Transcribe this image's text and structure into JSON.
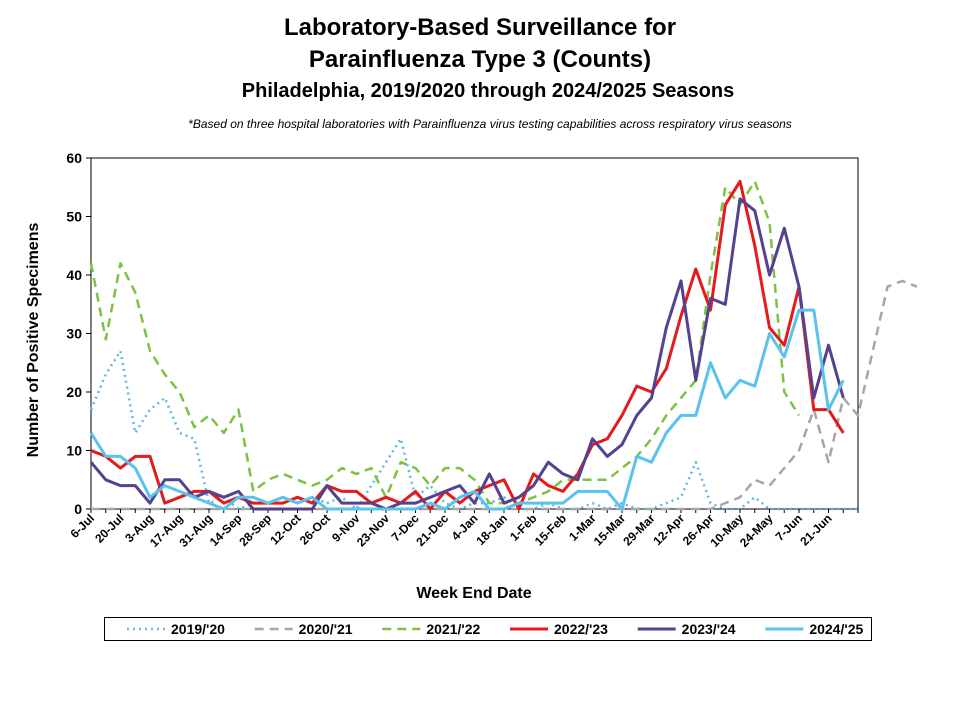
{
  "header": {
    "title_line1": "Laboratory-Based Surveillance for",
    "title_line2": "Parainfluenza Type 3 (Counts)",
    "subtitle": "Philadelphia, 2019/2020 through 2024/2025 Seasons",
    "note": "*Based on three hospital laboratories with Parainfluenza virus testing capabilities across respiratory virus seasons"
  },
  "chart_data": {
    "type": "line",
    "title": "Laboratory-Based Surveillance for Parainfluenza Type 3 (Counts)",
    "subtitle": "Philadelphia, 2019/2020 through 2024/2025 Seasons",
    "xlabel": "Week End Date",
    "ylabel": "Number of Positive Specimens",
    "ylim": [
      0,
      60
    ],
    "yticks": [
      0,
      10,
      20,
      30,
      40,
      50,
      60
    ],
    "grid": false,
    "legend_position": "bottom",
    "x_tick_labels": [
      "6-Jul",
      "20-Jul",
      "3-Aug",
      "17-Aug",
      "31-Aug",
      "14-Sep",
      "28-Sep",
      "12-Oct",
      "26-Oct",
      "9-Nov",
      "23-Nov",
      "7-Dec",
      "21-Dec",
      "4-Jan",
      "18-Jan",
      "1-Feb",
      "15-Feb",
      "1-Mar",
      "15-Mar",
      "29-Mar",
      "12-Apr",
      "26-Apr",
      "10-May",
      "24-May",
      "7-Jun",
      "21-Jun"
    ],
    "weeks_per_tick": 2,
    "series": [
      {
        "name": "2019/'20",
        "color": "#5fb8e0",
        "style": "dotted",
        "values": [
          17,
          23,
          27,
          13,
          17,
          19,
          13,
          12,
          1,
          2,
          0,
          1,
          1,
          2,
          1,
          2,
          1,
          2,
          0,
          4,
          8,
          12,
          2,
          4,
          1,
          0,
          1,
          1,
          2,
          0,
          0,
          1,
          0,
          0,
          1,
          0,
          1,
          0,
          0,
          1,
          2,
          8,
          1,
          0,
          0,
          2,
          0,
          0,
          0,
          0,
          0,
          0,
          0
        ]
      },
      {
        "name": "2020/'21",
        "color": "#a6a6a6",
        "style": "dashed",
        "values": [
          0,
          0,
          0,
          0,
          0,
          0,
          0,
          0,
          0,
          0,
          0,
          0,
          0,
          0,
          0,
          0,
          0,
          0,
          0,
          0,
          0,
          0,
          0,
          0,
          0,
          0,
          0,
          0,
          0,
          0,
          0,
          0,
          0,
          0,
          0,
          0,
          0,
          0,
          0,
          0,
          0,
          0,
          0,
          1,
          2,
          5,
          4,
          7,
          10,
          17,
          8,
          19,
          16,
          27,
          38,
          39,
          38
        ]
      },
      {
        "name": "2021/'22",
        "color": "#7dc242",
        "style": "dashed",
        "values": [
          42,
          29,
          42,
          37,
          27,
          23,
          20,
          14,
          16,
          13,
          17,
          3,
          5,
          6,
          5,
          4,
          5,
          7,
          6,
          7,
          2,
          8,
          7,
          4,
          7,
          7,
          5,
          1,
          1,
          1,
          2,
          3,
          5,
          5,
          5,
          5,
          7,
          9,
          12,
          16,
          19,
          22,
          40,
          55,
          52,
          56,
          49,
          20,
          16
        ]
      },
      {
        "name": "2022/'23",
        "color": "#e41a1c",
        "style": "solid",
        "values": [
          10,
          9,
          7,
          9,
          9,
          1,
          2,
          3,
          3,
          1,
          2,
          1,
          1,
          1,
          2,
          1,
          4,
          3,
          3,
          1,
          2,
          1,
          3,
          0,
          3,
          1,
          3,
          4,
          5,
          0,
          6,
          4,
          3,
          6,
          11,
          12,
          16,
          21,
          20,
          24,
          33,
          41,
          34,
          52,
          56,
          45,
          31,
          28,
          38,
          17,
          17,
          13
        ]
      },
      {
        "name": "2023/'24",
        "color": "#55428f",
        "style": "solid",
        "values": [
          8,
          5,
          4,
          4,
          1,
          5,
          5,
          2,
          3,
          2,
          3,
          0,
          0,
          0,
          0,
          0,
          4,
          1,
          1,
          1,
          0,
          1,
          1,
          2,
          3,
          4,
          1,
          6,
          1,
          2,
          4,
          8,
          6,
          5,
          12,
          9,
          11,
          16,
          19,
          31,
          39,
          22,
          36,
          35,
          53,
          51,
          40,
          48,
          38,
          19,
          28,
          19
        ]
      },
      {
        "name": "2024/'25",
        "color": "#5bc2ec",
        "style": "solid",
        "values": [
          13,
          9,
          9,
          7,
          2,
          4,
          3,
          2,
          1,
          0,
          2,
          2,
          1,
          2,
          1,
          2,
          0,
          0,
          0,
          0,
          0,
          0,
          0,
          1,
          0,
          2,
          3,
          0,
          0,
          1,
          1,
          1,
          1,
          3,
          3,
          3,
          0,
          9,
          8,
          13,
          16,
          16,
          25,
          19,
          22,
          21,
          30,
          26,
          34,
          34,
          17,
          22
        ]
      }
    ]
  }
}
